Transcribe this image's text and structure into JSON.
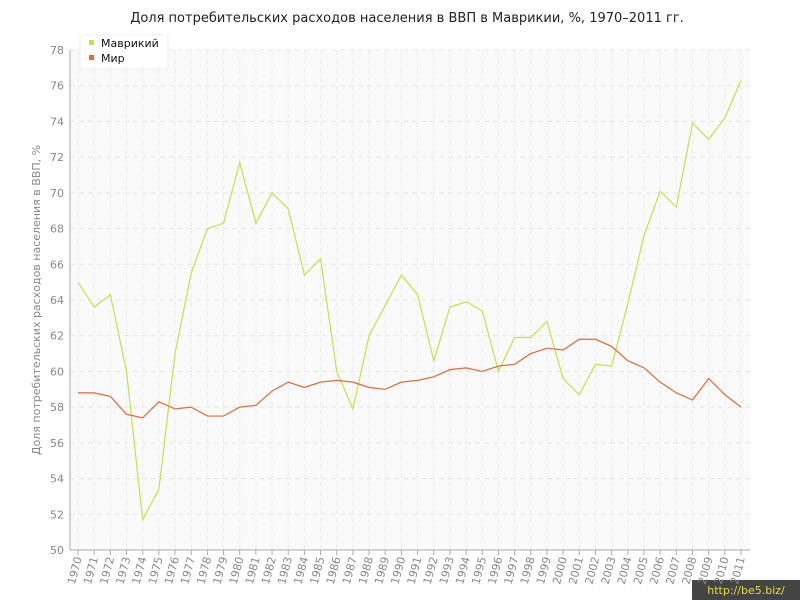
{
  "chart_data": {
    "type": "line",
    "title": "Доля потребительских расходов населения в ВВП в Маврикии, %, 1970–2011 гг.",
    "y_label": "Доля потребительских расходов населения в ВВП, %",
    "watermark": "http://be5.biz/",
    "categories": [
      "1970",
      "1971",
      "1972",
      "1973",
      "1974",
      "1975",
      "1976",
      "1977",
      "1978",
      "1979",
      "1980",
      "1981",
      "1982",
      "1983",
      "1984",
      "1985",
      "1986",
      "1987",
      "1988",
      "1989",
      "1990",
      "1991",
      "1992",
      "1993",
      "1994",
      "1995",
      "1996",
      "1997",
      "1998",
      "1999",
      "2000",
      "2001",
      "2002",
      "2003",
      "2004",
      "2005",
      "2006",
      "2007",
      "2008",
      "2009",
      "2010",
      "2011"
    ],
    "series": [
      {
        "name": "Маврикий",
        "color": "#c5e04a",
        "values": [
          65.0,
          63.6,
          64.3,
          60.0,
          51.7,
          53.4,
          61.0,
          65.5,
          68.0,
          68.3,
          71.7,
          68.3,
          70.0,
          69.1,
          65.4,
          66.3,
          60.0,
          57.9,
          62.0,
          63.7,
          65.4,
          64.3,
          60.6,
          63.6,
          63.9,
          63.4,
          60.0,
          61.9,
          61.9,
          62.8,
          59.6,
          58.7,
          60.4,
          60.3,
          63.8,
          67.6,
          70.1,
          69.2,
          73.9,
          73.0,
          74.2,
          76.3
        ]
      },
      {
        "name": "Мир",
        "color": "#e06a3c",
        "values": [
          58.8,
          58.8,
          58.6,
          57.6,
          57.4,
          58.3,
          57.9,
          58.0,
          57.5,
          57.5,
          58.0,
          58.1,
          58.9,
          59.4,
          59.1,
          59.4,
          59.5,
          59.4,
          59.1,
          59.0,
          59.4,
          59.5,
          59.7,
          60.1,
          60.2,
          60.0,
          60.3,
          60.4,
          61.0,
          61.3,
          61.2,
          61.8,
          61.8,
          61.4,
          60.6,
          60.2,
          59.4,
          58.8,
          58.4,
          59.6,
          58.7,
          58.0
        ]
      }
    ],
    "ylim": [
      50,
      78
    ],
    "yticks": [
      50,
      52,
      54,
      56,
      58,
      60,
      62,
      64,
      66,
      68,
      70,
      72,
      74,
      76,
      78
    ],
    "grid": true,
    "legend": "top-left"
  }
}
